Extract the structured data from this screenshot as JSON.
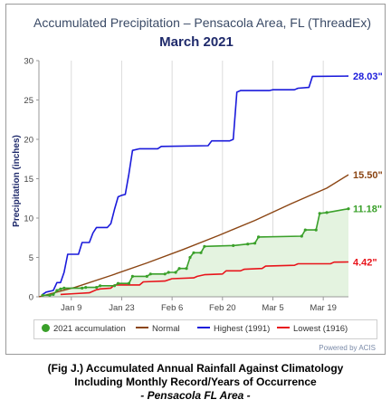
{
  "header": {
    "title": "Accumulated Precipitation – Pensacola Area, FL (ThreadEx)"
  },
  "chart_data": {
    "type": "line",
    "title": "March 2021",
    "ylabel": "Precipitation (inches)",
    "xlabel": "",
    "ylim": [
      0,
      30
    ],
    "yticks": [
      0,
      5,
      10,
      15,
      20,
      25,
      30
    ],
    "x_tick_labels": [
      {
        "day": 9,
        "label": "Jan 9"
      },
      {
        "day": 23,
        "label": "Jan 23"
      },
      {
        "day": 37,
        "label": "Feb 6"
      },
      {
        "day": 51,
        "label": "Feb 20"
      },
      {
        "day": 65,
        "label": "Mar 5"
      },
      {
        "day": 79,
        "label": "Mar 19"
      }
    ],
    "grid": "vertical",
    "legend_position": "bottom",
    "series": [
      {
        "name": "Highest (1991)",
        "color": "#1a1adb",
        "end_label": "28.03\"",
        "points": [
          [
            1,
            0.3
          ],
          [
            2,
            0.6
          ],
          [
            4,
            0.8
          ],
          [
            5,
            1.8
          ],
          [
            6,
            1.8
          ],
          [
            7,
            3.1
          ],
          [
            8,
            5.4
          ],
          [
            11,
            5.4
          ],
          [
            12,
            6.9
          ],
          [
            14,
            6.9
          ],
          [
            15,
            8.1
          ],
          [
            16,
            8.8
          ],
          [
            19,
            8.8
          ],
          [
            20,
            9.3
          ],
          [
            21,
            11.1
          ],
          [
            22,
            12.7
          ],
          [
            23,
            12.9
          ],
          [
            24,
            13.0
          ],
          [
            25,
            15.6
          ],
          [
            26,
            18.6
          ],
          [
            28,
            18.8
          ],
          [
            33,
            18.8
          ],
          [
            34,
            19.1
          ],
          [
            47,
            19.2
          ],
          [
            48,
            19.8
          ],
          [
            53,
            19.8
          ],
          [
            54,
            20.0
          ],
          [
            55,
            26.0
          ],
          [
            56,
            26.2
          ],
          [
            64,
            26.2
          ],
          [
            65,
            26.3
          ],
          [
            71,
            26.3
          ],
          [
            72,
            26.5
          ],
          [
            75,
            26.6
          ],
          [
            76,
            28.0
          ],
          [
            86,
            28.03
          ]
        ]
      },
      {
        "name": "Normal",
        "color": "#8b4513",
        "end_label": "15.50\"",
        "points": [
          [
            0,
            0
          ],
          [
            10,
            1.2
          ],
          [
            20,
            2.7
          ],
          [
            30,
            4.3
          ],
          [
            40,
            6.0
          ],
          [
            50,
            7.8
          ],
          [
            60,
            9.7
          ],
          [
            70,
            11.8
          ],
          [
            80,
            13.8
          ],
          [
            86,
            15.5
          ]
        ]
      },
      {
        "name": "2021 accumulation",
        "color": "#3aa02a",
        "fill": "#e4f3e0",
        "marker": "dot",
        "end_label": "11.18\"",
        "points": [
          [
            1,
            0.2
          ],
          [
            3,
            0.2
          ],
          [
            4,
            0.3
          ],
          [
            5,
            0.8
          ],
          [
            6,
            1.0
          ],
          [
            7,
            1.1
          ],
          [
            12,
            1.1
          ],
          [
            13,
            1.2
          ],
          [
            16,
            1.2
          ],
          [
            17,
            1.4
          ],
          [
            21,
            1.4
          ],
          [
            22,
            1.7
          ],
          [
            25,
            1.7
          ],
          [
            26,
            2.6
          ],
          [
            30,
            2.6
          ],
          [
            31,
            2.9
          ],
          [
            35,
            2.9
          ],
          [
            36,
            3.1
          ],
          [
            38,
            3.1
          ],
          [
            39,
            3.6
          ],
          [
            41,
            3.6
          ],
          [
            42,
            5.0
          ],
          [
            43,
            5.6
          ],
          [
            45,
            5.6
          ],
          [
            46,
            6.4
          ],
          [
            54,
            6.5
          ],
          [
            58,
            6.7
          ],
          [
            60,
            6.8
          ],
          [
            61,
            7.6
          ],
          [
            73,
            7.7
          ],
          [
            74,
            8.5
          ],
          [
            77,
            8.5
          ],
          [
            78,
            10.6
          ],
          [
            80,
            10.7
          ],
          [
            86,
            11.18
          ]
        ]
      },
      {
        "name": "Lowest (1916)",
        "color": "#e8141b",
        "end_label": "4.42\"",
        "points": [
          [
            6,
            0.3
          ],
          [
            10,
            0.4
          ],
          [
            14,
            0.5
          ],
          [
            16,
            0.9
          ],
          [
            17,
            1.0
          ],
          [
            20,
            1.1
          ],
          [
            21,
            1.5
          ],
          [
            28,
            1.5
          ],
          [
            29,
            1.9
          ],
          [
            35,
            2.0
          ],
          [
            37,
            2.3
          ],
          [
            43,
            2.4
          ],
          [
            44,
            2.6
          ],
          [
            46,
            2.8
          ],
          [
            51,
            2.9
          ],
          [
            52,
            3.3
          ],
          [
            56,
            3.3
          ],
          [
            57,
            3.5
          ],
          [
            62,
            3.6
          ],
          [
            63,
            3.9
          ],
          [
            71,
            4.0
          ],
          [
            72,
            4.2
          ],
          [
            81,
            4.2
          ],
          [
            82,
            4.4
          ],
          [
            86,
            4.42
          ]
        ]
      }
    ]
  },
  "credit": "Powered by ACIS",
  "caption": {
    "line1": "(Fig J.) Accumulated Annual Rainfall Against  Climatology",
    "line2": "Including Monthly Record/Years of Occurrence",
    "line3": "- Pensacola FL Area -"
  }
}
